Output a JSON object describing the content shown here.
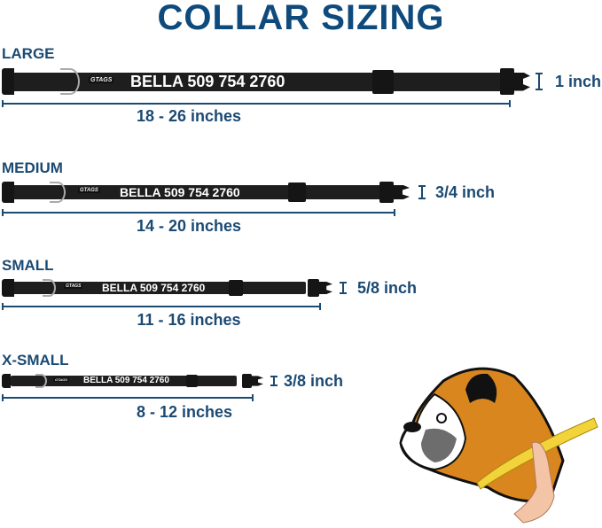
{
  "title": "COLLAR SIZING",
  "brand_mark": "GTAGS",
  "colors": {
    "text": "#1b4a73",
    "collar": "#1e1e1e",
    "dog_orange": "#d9861f",
    "tape": "#f2d43a"
  },
  "collars": [
    {
      "size": "LARGE",
      "imprint": "BELLA 509 754 2760",
      "length": "18 - 26 inches",
      "width": "1 inch"
    },
    {
      "size": "MEDIUM",
      "imprint": "BELLA 509 754 2760",
      "length": "14 - 20 inches",
      "width": "3/4 inch"
    },
    {
      "size": "SMALL",
      "imprint": "BELLA 509 754 2760",
      "length": "11 - 16 inches",
      "width": "5/8 inch"
    },
    {
      "size": "X-SMALL",
      "imprint": "BELLA 509 754 2760",
      "length": "8 - 12 inches",
      "width": "3/8 inch"
    }
  ]
}
